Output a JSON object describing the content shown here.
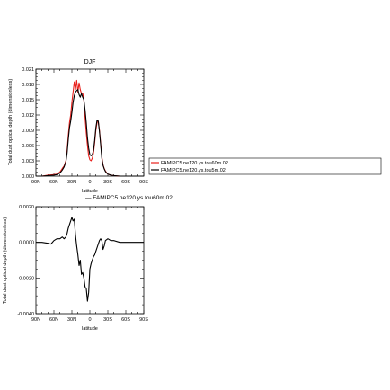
{
  "chart_data": [
    {
      "type": "line",
      "title": "DJF",
      "xlabel": "latitude",
      "ylabel": "Total dust optical depth (dimensionless)",
      "x_ticks": [
        90,
        60,
        30,
        0,
        -30,
        -60,
        -90
      ],
      "x_tick_labels": [
        "90N",
        "60N",
        "30N",
        "0",
        "30S",
        "60S",
        "90S"
      ],
      "xlim": [
        90,
        -90
      ],
      "ylim": [
        0,
        0.021
      ],
      "y_ticks": [
        0,
        0.003,
        0.006,
        0.009,
        0.012,
        0.015,
        0.018,
        0.021
      ],
      "y_tick_labels": [
        "0.000",
        "0.003",
        "0.006",
        "0.009",
        "0.012",
        "0.015",
        "0.018",
        "0.021"
      ],
      "legend": "right",
      "series": [
        {
          "name": "FAMIPC5.ne120.ys.tou60m.02",
          "color": "#e8201c",
          "x": [
            90,
            80,
            70,
            60,
            55,
            50,
            46,
            43,
            40,
            38,
            36,
            34,
            32,
            30,
            28,
            26,
            24,
            22,
            20,
            18,
            16,
            14,
            12,
            10,
            8,
            6,
            4,
            2,
            0,
            -2,
            -4,
            -6,
            -8,
            -10,
            -12,
            -14,
            -16,
            -18,
            -20,
            -22,
            -24,
            -26,
            -28,
            -30,
            -35,
            -40,
            -50,
            -60,
            -70,
            -80,
            -90
          ],
          "values": [
            0,
            0,
            0.0002,
            0.0003,
            0.0004,
            0.0008,
            0.0015,
            0.002,
            0.003,
            0.005,
            0.008,
            0.0105,
            0.012,
            0.0145,
            0.0165,
            0.0185,
            0.017,
            0.0188,
            0.0165,
            0.0183,
            0.017,
            0.0162,
            0.0163,
            0.015,
            0.0115,
            0.0085,
            0.006,
            0.004,
            0.0032,
            0.003,
            0.0035,
            0.0045,
            0.0065,
            0.009,
            0.0105,
            0.0108,
            0.009,
            0.0065,
            0.0038,
            0.0022,
            0.0015,
            0.001,
            0.0007,
            0.0004,
            0.0002,
            0.0001,
            0,
            0,
            0,
            0,
            0
          ]
        },
        {
          "name": "FAMIPC5.ne120.ys.tou5m.02",
          "color": "#000000",
          "x": [
            90,
            80,
            70,
            60,
            55,
            50,
            46,
            43,
            40,
            38,
            36,
            34,
            32,
            30,
            28,
            26,
            24,
            22,
            20,
            18,
            16,
            14,
            12,
            10,
            8,
            6,
            4,
            2,
            0,
            -2,
            -4,
            -6,
            -8,
            -10,
            -12,
            -14,
            -16,
            -18,
            -20,
            -22,
            -24,
            -26,
            -28,
            -30,
            -35,
            -40,
            -50,
            -60,
            -70,
            -80,
            -90
          ],
          "values": [
            0,
            0,
            0.0001,
            0.0002,
            0.0003,
            0.0006,
            0.0012,
            0.0018,
            0.0028,
            0.0045,
            0.0072,
            0.0095,
            0.0108,
            0.0125,
            0.0145,
            0.0158,
            0.0165,
            0.0168,
            0.017,
            0.016,
            0.0155,
            0.0162,
            0.0155,
            0.015,
            0.013,
            0.0105,
            0.0075,
            0.0055,
            0.0042,
            0.004,
            0.0042,
            0.005,
            0.007,
            0.0095,
            0.011,
            0.0108,
            0.0088,
            0.0062,
            0.0035,
            0.0021,
            0.0014,
            0.0009,
            0.0006,
            0.0004,
            0.0002,
            0.0001,
            0,
            0,
            0,
            0,
            0
          ]
        }
      ]
    },
    {
      "type": "line",
      "title": "",
      "legend_label": "— FAMIPC5.ne120.ys.tou60m.02",
      "xlabel": "latitude",
      "ylabel": "Total dust optical depth (dimensionless)",
      "x_ticks": [
        90,
        60,
        30,
        0,
        -30,
        -60,
        -90
      ],
      "x_tick_labels": [
        "90N",
        "60N",
        "30N",
        "0",
        "30S",
        "60S",
        "90S"
      ],
      "xlim": [
        90,
        -90
      ],
      "ylim": [
        -0.004,
        0.002
      ],
      "y_ticks": [
        -0.004,
        -0.002,
        0,
        0.002
      ],
      "y_tick_labels": [
        "-0.0040",
        "-0.0020",
        "0.0000",
        "0.0020"
      ],
      "series": [
        {
          "color": "#000000",
          "x": [
            90,
            80,
            70,
            65,
            60,
            55,
            50,
            46,
            43,
            40,
            38,
            36,
            34,
            32,
            30,
            28,
            26,
            24,
            22,
            20,
            18,
            16,
            14,
            12,
            10,
            8,
            6,
            4,
            2,
            0,
            -2,
            -4,
            -6,
            -8,
            -10,
            -12,
            -14,
            -16,
            -18,
            -20,
            -22,
            -24,
            -26,
            -28,
            -30,
            -35,
            -40,
            -50,
            -60,
            -70,
            -80,
            -90
          ],
          "values": [
            0,
            0,
            -5e-05,
            -0.0001,
            0.0001,
            0.0002,
            0.0002,
            0.0003,
            0.0002,
            0.0003,
            0.0005,
            0.0008,
            0.001,
            0.0012,
            0.0014,
            0.0012,
            0.0013,
            0.0004,
            -0.0002,
            -0.0007,
            -0.0013,
            -0.001,
            -0.0018,
            -0.0017,
            -0.002,
            -0.0025,
            -0.0026,
            -0.0033,
            -0.0028,
            -0.0015,
            -0.0012,
            -0.001,
            -0.0008,
            -0.0007,
            -0.0005,
            -0.0003,
            -0.0001,
            0.0001,
            0.0002,
            0.0001,
            -0.0004,
            -0.0002,
            0.0001,
            0.00015,
            0.0002,
            0.0001,
            0.0001,
            0,
            0,
            0,
            0,
            0
          ]
        }
      ]
    }
  ]
}
